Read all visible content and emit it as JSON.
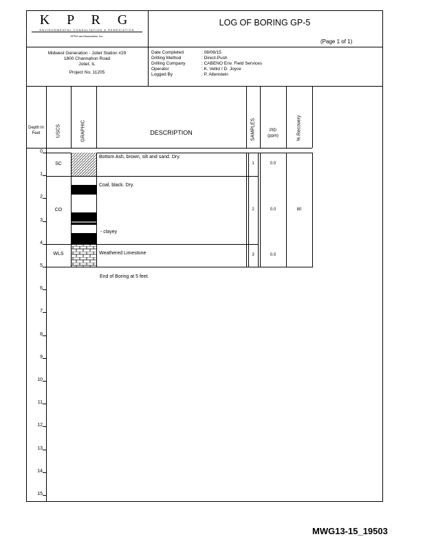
{
  "logo": {
    "letters": "K P R G",
    "tagline": "ENVIRONMENTAL CONSULTATION & REMEDIATION",
    "sub": "KPRG and Associates, Inc."
  },
  "title": "LOG OF BORING GP-5",
  "page": "(Page 1 of 1)",
  "site": {
    "name": "Midwest Generation - Joliet Station #29",
    "address": "1800 Channahon Road",
    "city": "Joliet, IL",
    "project": "Project No. 11205"
  },
  "info": [
    {
      "label": "Date Completed",
      "value": ": 08/08/15"
    },
    {
      "label": "Drilling Method",
      "value": ": Direct-Push"
    },
    {
      "label": "Drilling Company",
      "value": ": CABENO Env. Field Services"
    },
    {
      "label": "Operator",
      "value": ": K. Vellol / D. Joyce"
    },
    {
      "label": "Logged By",
      "value": ": P. Altenstein"
    }
  ],
  "columns": {
    "depth": "Depth In Feet",
    "uscs": "USCS",
    "graphic": "GRAPHIC",
    "description": "DESCRIPTION",
    "samples": "SAMPLES",
    "pid": "PID (ppm)",
    "recovery": "% Recovery"
  },
  "depth_ticks": [
    "0",
    "1",
    "2",
    "3",
    "4",
    "5",
    "6",
    "7",
    "8",
    "9",
    "10",
    "11",
    "12",
    "13",
    "14",
    "15"
  ],
  "layers": [
    {
      "uscs": "SC",
      "description": "Bottom Ash, brown, silt and sand. Dry.",
      "sample": "1",
      "pid": "0.0",
      "pattern": "stipple-hatch"
    },
    {
      "uscs": "CO",
      "description": "Coal, black. Dry.",
      "note": "- clayey",
      "sample": "2",
      "pid": "0.0",
      "recovery": "80",
      "pattern": "coal-bands"
    },
    {
      "uscs": "WLS",
      "description": "Weathered Limestone",
      "sample": "3",
      "pid": "0.0",
      "pattern": "limestone-brick"
    }
  ],
  "end_note": "End of Boring at 5 feet.",
  "doc_id": "MWG13-15_19503"
}
